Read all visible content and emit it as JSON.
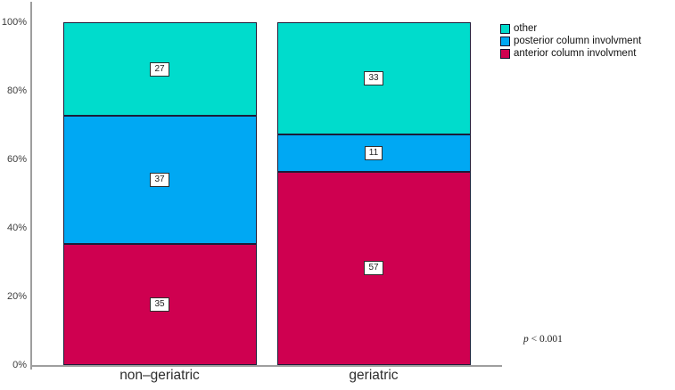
{
  "chart_data": {
    "type": "bar",
    "subtype": "100%-stacked-bar",
    "title": "",
    "xlabel": "",
    "ylabel": "",
    "categories": [
      "non–geriatric",
      "geriatric"
    ],
    "series": [
      {
        "name": "other",
        "color": "#00DCCC",
        "values": [
          27,
          33
        ]
      },
      {
        "name": "posterior column involvment",
        "color": "#00A8F3",
        "values": [
          37,
          11
        ]
      },
      {
        "name": "anterior column involvment",
        "color": "#CF0050",
        "values": [
          35,
          57
        ]
      }
    ],
    "stacking": "bottom-to-top: anterior column involvment, posterior column involvment, other",
    "y_axis": {
      "ticks": [
        "0%",
        "20%",
        "40%",
        "60%",
        "80%",
        "100%"
      ],
      "ylim": [
        0,
        100
      ]
    },
    "grid": false,
    "legend_position": "top-right"
  },
  "annotation": {
    "p_symbol": "p",
    "p_rest": "< 0.001"
  }
}
